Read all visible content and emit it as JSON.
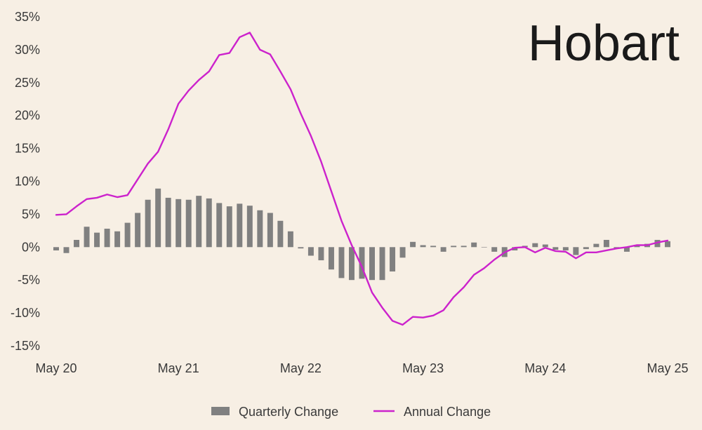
{
  "chart_data": {
    "type": "bar+line",
    "title": "Hobart",
    "xlabel": "",
    "ylabel": "",
    "ylim": [
      -15,
      35
    ],
    "y_ticks": [
      "35%",
      "30%",
      "25%",
      "20%",
      "15%",
      "10%",
      "5%",
      "0%",
      "-5%",
      "-10%",
      "-15%"
    ],
    "y_tick_values": [
      35,
      30,
      25,
      20,
      15,
      10,
      5,
      0,
      -5,
      -10,
      -15
    ],
    "x_ticks": [
      "May 20",
      "May 21",
      "May 22",
      "May 23",
      "May 24",
      "May 25"
    ],
    "x_tick_months": [
      0,
      12,
      24,
      36,
      48,
      60
    ],
    "x_months": [
      0,
      1,
      2,
      3,
      4,
      5,
      6,
      7,
      8,
      9,
      10,
      11,
      12,
      13,
      14,
      15,
      16,
      17,
      18,
      19,
      20,
      21,
      22,
      23,
      24,
      25,
      26,
      27,
      28,
      29,
      30,
      31,
      32,
      33,
      34,
      35,
      36,
      37,
      38,
      39,
      40,
      41,
      42,
      43,
      44,
      45,
      46,
      47,
      48,
      49,
      50,
      51,
      52,
      53,
      54,
      55,
      56,
      57,
      58,
      59,
      60
    ],
    "grid": false,
    "legend_position": "bottom-center",
    "series": [
      {
        "name": "Quarterly Change",
        "type": "bar",
        "color": "#808080",
        "values": [
          -0.5,
          -0.9,
          1.1,
          3.1,
          2.2,
          2.8,
          2.4,
          3.7,
          5.2,
          7.2,
          8.9,
          7.5,
          7.3,
          7.2,
          7.8,
          7.4,
          6.7,
          6.2,
          6.6,
          6.3,
          5.6,
          5.2,
          4.0,
          2.4,
          -0.2,
          -1.3,
          -2.0,
          -3.4,
          -4.7,
          -5.0,
          -4.8,
          -5.0,
          -5.0,
          -3.7,
          -1.6,
          0.8,
          0.3,
          0.2,
          -0.7,
          0.2,
          0.2,
          0.7,
          0.0,
          -0.7,
          -1.5,
          -0.5,
          0.2,
          0.6,
          0.4,
          -0.4,
          -0.5,
          -1.2,
          -0.3,
          0.5,
          1.1,
          -0.2,
          -0.7,
          0.2,
          0.5,
          1.1,
          0.9
        ]
      },
      {
        "name": "Annual Change",
        "type": "line",
        "color": "#cc22cc",
        "values": [
          4.9,
          5.0,
          6.2,
          7.3,
          7.5,
          8.0,
          7.6,
          7.9,
          10.3,
          12.7,
          14.5,
          17.9,
          21.8,
          23.8,
          25.4,
          26.7,
          29.2,
          29.5,
          31.9,
          32.6,
          30.0,
          29.3,
          26.7,
          24.0,
          20.3,
          16.9,
          13.0,
          8.5,
          4.0,
          0.3,
          -3.0,
          -6.9,
          -9.2,
          -11.2,
          -11.8,
          -10.6,
          -10.7,
          -10.4,
          -9.6,
          -7.6,
          -6.1,
          -4.2,
          -3.2,
          -1.9,
          -0.8,
          -0.1,
          0.0,
          -0.8,
          -0.1,
          -0.6,
          -0.7,
          -1.7,
          -0.8,
          -0.8,
          -0.5,
          -0.2,
          0.0,
          0.3,
          0.3,
          0.7,
          1.0
        ]
      }
    ]
  }
}
